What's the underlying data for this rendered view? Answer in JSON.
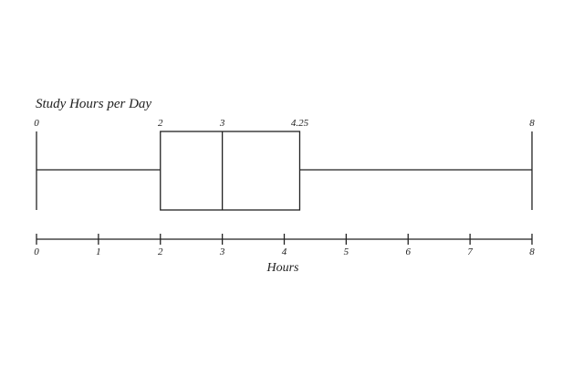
{
  "chart_data": {
    "type": "boxplot",
    "title": "Study Hours per Day",
    "xlabel": "Hours",
    "xlim": [
      0,
      8
    ],
    "ticks": [
      0,
      1,
      2,
      3,
      4,
      5,
      6,
      7,
      8
    ],
    "tick_labels": [
      "0",
      "1",
      "2",
      "3",
      "4",
      "5",
      "6",
      "7",
      "8"
    ],
    "summary": {
      "min": 0,
      "q1": 2,
      "median": 3,
      "q3": 4.25,
      "max": 8
    },
    "value_labels": [
      "0",
      "2",
      "3",
      "4.25",
      "8"
    ]
  }
}
